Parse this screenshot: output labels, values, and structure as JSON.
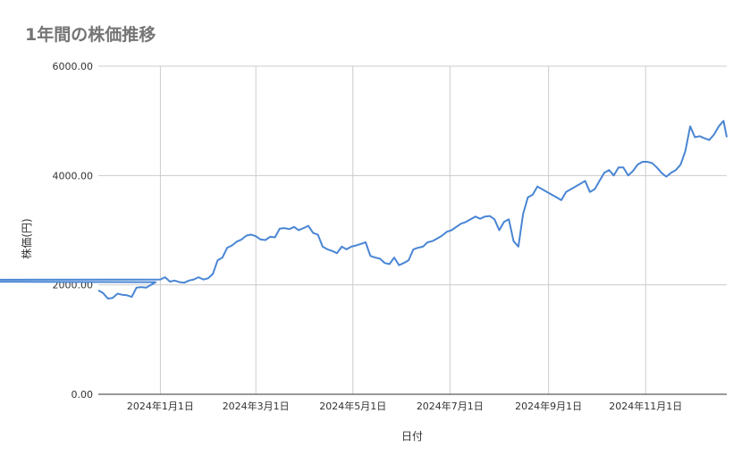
{
  "chart_data": {
    "type": "line",
    "title": "1年間の株価推移",
    "xlabel": "日付",
    "ylabel": "株価(円)",
    "ylim": [
      0,
      6000
    ],
    "xlim": [
      "2023-11-23",
      "2024-12-22"
    ],
    "yticks": [
      0,
      2000,
      4000,
      6000
    ],
    "ytick_labels": [
      "0.00",
      "2000.00",
      "4000.00",
      "6000.00"
    ],
    "xticks": [
      "2024-01-01",
      "2024-03-01",
      "2024-05-01",
      "2024-07-01",
      "2024-09-01",
      "2024-11-01"
    ],
    "xtick_labels": [
      "2024年1月1日",
      "2024年3月1日",
      "2024年5月1日",
      "2024年7月1日",
      "2024年9月1日",
      "2024年11月1日"
    ],
    "grid": true,
    "legend": "none",
    "colors": {
      "line": "#4a86d4",
      "grid": "#cccccc",
      "axis": "#333333",
      "title": "#757575"
    },
    "series": [
      {
        "x": [
          "2023-11-23",
          "2023-11-26",
          "2023-11-29",
          "2023-12-02",
          "2023-12-05",
          "2023-12-08",
          "2023-12-11",
          "2023-12-14",
          "2023-12-17",
          "2023-12-20",
          "2023-12-23",
          "2023-12-26",
          "2023-12-29",
          "2023-01-01",
          "2024-01-01",
          "2024-01-04",
          "2024-01-07",
          "2024-01-10",
          "2024-01-13",
          "2024-01-16",
          "2024-01-19",
          "2024-01-22",
          "2024-01-25",
          "2024-01-28",
          "2024-01-31",
          "2024-02-03",
          "2024-02-06",
          "2024-02-09",
          "2024-02-12",
          "2024-02-15",
          "2024-02-18",
          "2024-02-21",
          "2024-02-24",
          "2024-02-27",
          "2024-03-01",
          "2024-03-04",
          "2024-03-07",
          "2024-03-10",
          "2024-03-13",
          "2024-03-16",
          "2024-03-19",
          "2024-03-22",
          "2024-03-25",
          "2024-03-28",
          "2024-03-31",
          "2024-04-03",
          "2024-04-06",
          "2024-04-09",
          "2024-04-12",
          "2024-04-15",
          "2024-04-18",
          "2024-04-21",
          "2024-04-24",
          "2024-04-27",
          "2024-04-30",
          "2024-05-03",
          "2024-05-06",
          "2024-05-09",
          "2024-05-12",
          "2024-05-15",
          "2024-05-18",
          "2024-05-21",
          "2024-05-24",
          "2024-05-27",
          "2024-05-30",
          "2024-06-02",
          "2024-06-05",
          "2024-06-08",
          "2024-06-11",
          "2024-06-14",
          "2024-06-17",
          "2024-06-20",
          "2024-06-23",
          "2024-06-26",
          "2024-06-29",
          "2024-07-02",
          "2024-07-05",
          "2024-07-08",
          "2024-07-11",
          "2024-07-14",
          "2024-07-17",
          "2024-07-20",
          "2024-07-23",
          "2024-07-26",
          "2024-07-29",
          "2024-08-01",
          "2024-08-04",
          "2024-08-07",
          "2024-08-10",
          "2024-08-13",
          "2024-08-16",
          "2024-08-19",
          "2024-08-22",
          "2024-08-25",
          "2024-08-28",
          "2024-08-31",
          "2024-09-03",
          "2024-09-06",
          "2024-09-09",
          "2024-09-12",
          "2024-09-15",
          "2024-09-18",
          "2024-09-21",
          "2024-09-24",
          "2024-09-27",
          "2024-09-30",
          "2024-10-03",
          "2024-10-06",
          "2024-10-09",
          "2024-10-12",
          "2024-10-15",
          "2024-10-18",
          "2024-10-21",
          "2024-10-24",
          "2024-10-27",
          "2024-10-30",
          "2024-11-02",
          "2024-11-05",
          "2024-11-08",
          "2024-11-11",
          "2024-11-14",
          "2024-11-17",
          "2024-11-20",
          "2024-11-23",
          "2024-11-26",
          "2024-11-29",
          "2024-12-02",
          "2024-12-05",
          "2024-12-08",
          "2024-12-11",
          "2024-12-14",
          "2024-12-17",
          "2024-12-20",
          "2024-12-22"
        ],
        "values": [
          1900,
          1850,
          1750,
          1760,
          1840,
          1820,
          1810,
          1780,
          1950,
          1960,
          1950,
          2000,
          2050,
          2080,
          2100,
          2140,
          2060,
          2080,
          2050,
          2040,
          2080,
          2100,
          2140,
          2100,
          2120,
          2200,
          2450,
          2500,
          2680,
          2720,
          2790,
          2830,
          2900,
          2920,
          2890,
          2830,
          2820,
          2880,
          2870,
          3030,
          3040,
          3020,
          3060,
          3000,
          3040,
          3080,
          2950,
          2920,
          2700,
          2650,
          2620,
          2580,
          2700,
          2650,
          2700,
          2720,
          2750,
          2780,
          2530,
          2500,
          2480,
          2400,
          2380,
          2500,
          2360,
          2400,
          2450,
          2650,
          2680,
          2700,
          2780,
          2800,
          2850,
          2900,
          2970,
          3000,
          3060,
          3120,
          3150,
          3200,
          3250,
          3210,
          3250,
          3260,
          3200,
          3000,
          3150,
          3200,
          2800,
          2700,
          3300,
          3600,
          3650,
          3800,
          3750,
          3700,
          3650,
          3600,
          3550,
          3700,
          3750,
          3800,
          3850,
          3900,
          3700,
          3750,
          3900,
          4050,
          4100,
          4000,
          4150,
          4150,
          4000,
          4080,
          4200,
          4250,
          4250,
          4230,
          4150,
          4050,
          3980,
          4050,
          4100,
          4200,
          4450,
          4900,
          4700,
          4720,
          4680,
          4650,
          4750,
          4900,
          5000,
          4700
        ]
      }
    ]
  }
}
